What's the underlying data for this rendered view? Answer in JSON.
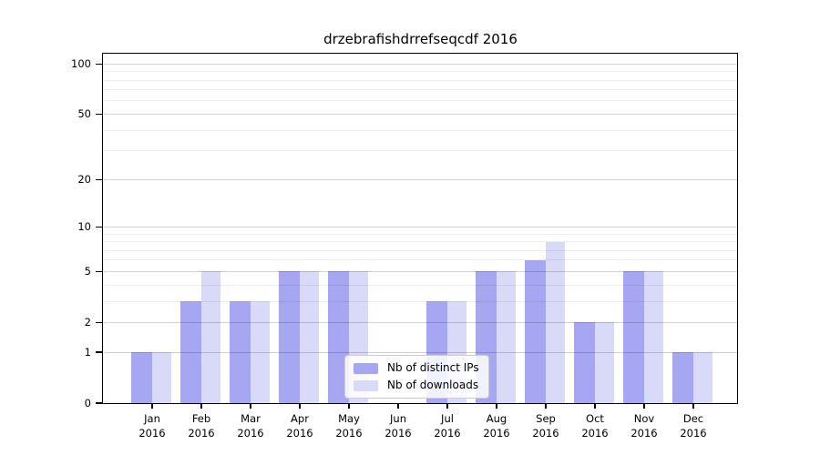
{
  "chart_data": {
    "type": "bar",
    "title": "drzebrafishdrrefseqcdf 2016",
    "months": [
      "Jan",
      "Feb",
      "Mar",
      "Apr",
      "May",
      "Jun",
      "Jul",
      "Aug",
      "Sep",
      "Oct",
      "Nov",
      "Dec"
    ],
    "year": "2016",
    "series": [
      {
        "name": "Nb of distinct IPs",
        "color": "#a6a6f3",
        "values": [
          1,
          3,
          3,
          5,
          5,
          0,
          3,
          5,
          6,
          2,
          5,
          1
        ]
      },
      {
        "name": "Nb of downloads",
        "color": "#d9d9f8",
        "values": [
          1,
          5,
          3,
          5,
          5,
          0,
          3,
          5,
          8,
          2,
          5,
          1
        ]
      }
    ],
    "yscale": "log10(value+1)",
    "ylim": [
      0,
      115
    ],
    "yticks": [
      0,
      1,
      2,
      5,
      10,
      20,
      50,
      100
    ],
    "yticks_minor": [
      3,
      4,
      6,
      7,
      8,
      9,
      30,
      40,
      60,
      70,
      80,
      90
    ],
    "grid": "horizontal, drawn over bars",
    "legend_position": "lower center"
  }
}
